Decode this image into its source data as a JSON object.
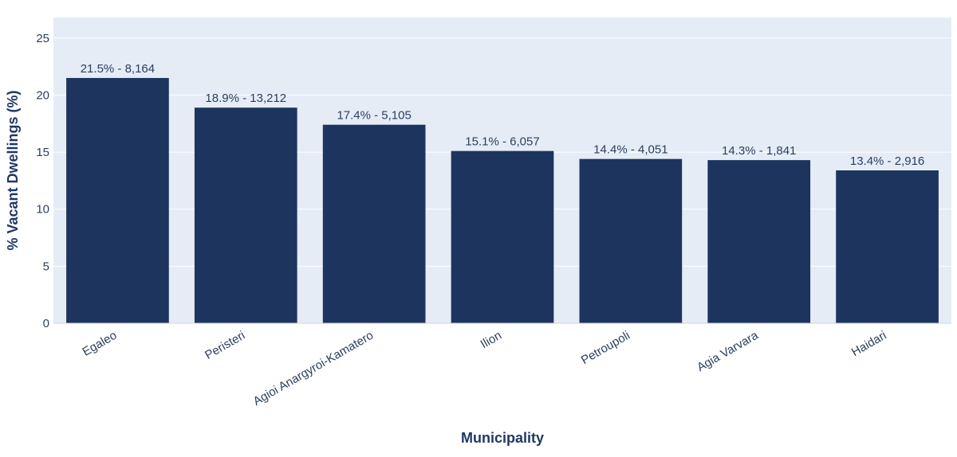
{
  "chart_data": {
    "type": "bar",
    "title": "",
    "xlabel": "Municipality",
    "ylabel": "% Vacant Dwellings (%)",
    "categories": [
      "Egaleo",
      "Peristeri",
      "Agioi Anargyroi-Kamatero",
      "Ilion",
      "Petroupoli",
      "Agia Varvara",
      "Haidari"
    ],
    "values": [
      21.5,
      18.9,
      17.4,
      15.1,
      14.4,
      14.3,
      13.4
    ],
    "counts": [
      "8,164",
      "13,212",
      "5,105",
      "6,057",
      "4,051",
      "1,841",
      "2,916"
    ],
    "data_labels": [
      "21.5% - 8,164",
      "18.9% - 13,212",
      "17.4% - 5,105",
      "15.1% - 6,057",
      "14.4% - 4,051",
      "14.3% - 1,841",
      "13.4% - 2,916"
    ],
    "ylim": [
      0,
      26.8
    ],
    "yticks": [
      0,
      5,
      10,
      15,
      20,
      25
    ],
    "grid": true,
    "colors": {
      "bar": "#1d355e",
      "plot_bg": "#e5ecf6",
      "grid": "#ffffff",
      "text": "#2a3f5f"
    }
  }
}
